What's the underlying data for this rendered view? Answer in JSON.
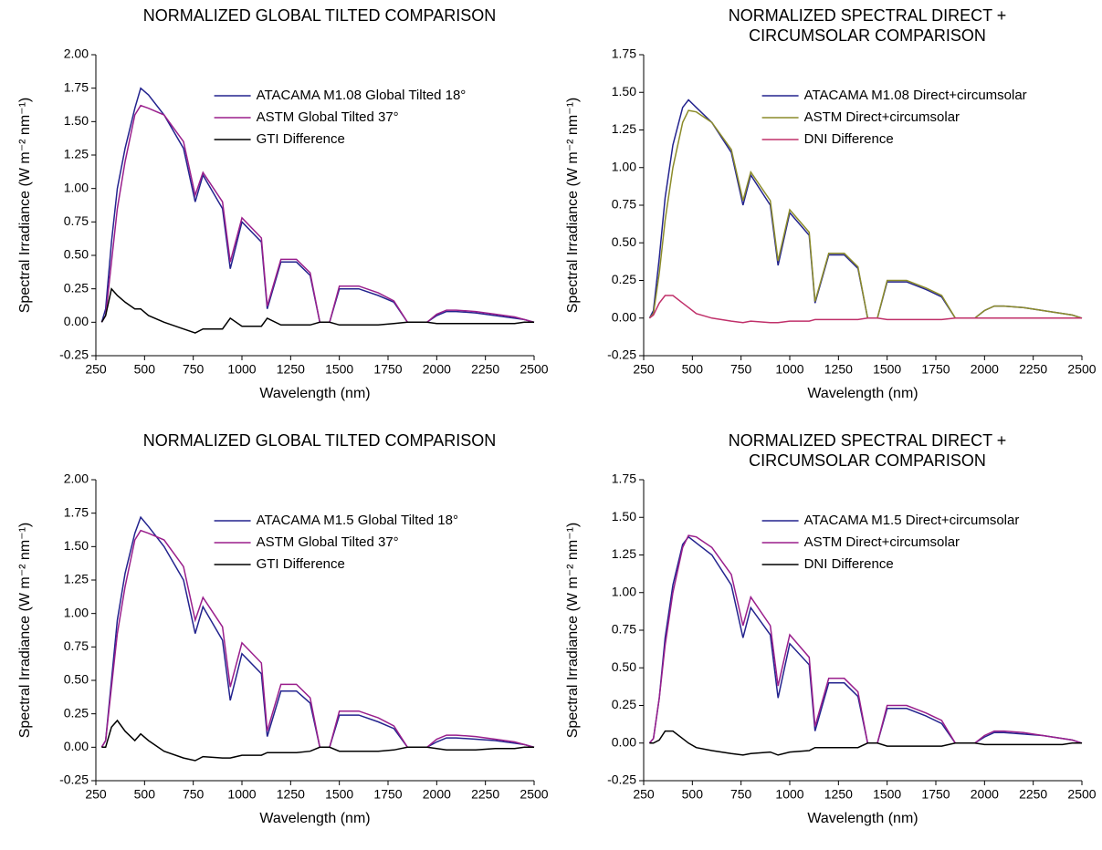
{
  "chart_data": [
    {
      "type": "line",
      "title": "NORMALIZED GLOBAL TILTED COMPARISON",
      "xlabel": "Wavelength (nm)",
      "ylabel": "Spectral Irradiance (W m⁻² nm⁻¹)",
      "x": [
        280,
        300,
        330,
        360,
        400,
        450,
        480,
        520,
        600,
        700,
        760,
        800,
        900,
        940,
        1000,
        1100,
        1130,
        1200,
        1280,
        1350,
        1400,
        1450,
        1500,
        1600,
        1700,
        1780,
        1850,
        1950,
        2000,
        2050,
        2100,
        2200,
        2300,
        2400,
        2450,
        2500
      ],
      "xlim": [
        250,
        2500
      ],
      "xticks": [
        250,
        500,
        750,
        1000,
        1250,
        1500,
        1750,
        2000,
        2250,
        2500
      ],
      "ylim": [
        -0.25,
        2
      ],
      "yticks": [
        -0.25,
        {
          "value": 0,
          "label": "0.00"
        },
        0.25,
        {
          "value": 0.5,
          "label": "0.50"
        },
        0.75,
        {
          "value": 1,
          "label": "1.00"
        },
        1.25,
        {
          "value": 1.5,
          "label": "1.50"
        },
        1.75,
        {
          "value": 2,
          "label": "2.00"
        }
      ],
      "legend": "upper right",
      "series": [
        {
          "name": "ATACAMA M1.08 Global Tilted  18°",
          "color": "#23238e",
          "values": [
            0,
            0.1,
            0.6,
            1.0,
            1.3,
            1.6,
            1.75,
            1.7,
            1.55,
            1.3,
            0.9,
            1.1,
            0.85,
            0.4,
            0.75,
            0.6,
            0.1,
            0.45,
            0.45,
            0.35,
            0,
            0,
            0.25,
            0.25,
            0.2,
            0.15,
            0,
            0,
            0.05,
            0.08,
            0.08,
            0.07,
            0.05,
            0.03,
            0.02,
            0
          ]
        },
        {
          "name": "ASTM Global Tilted  37°",
          "color": "#9a1f8c",
          "values": [
            0,
            0.05,
            0.45,
            0.85,
            1.2,
            1.55,
            1.62,
            1.6,
            1.55,
            1.35,
            0.95,
            1.12,
            0.9,
            0.45,
            0.78,
            0.63,
            0.12,
            0.47,
            0.47,
            0.37,
            0,
            0,
            0.27,
            0.27,
            0.22,
            0.16,
            0,
            0,
            0.06,
            0.09,
            0.09,
            0.08,
            0.06,
            0.04,
            0.02,
            0
          ]
        },
        {
          "name": "GTI Difference",
          "color": "#000000",
          "values": [
            0,
            0.05,
            0.25,
            0.2,
            0.15,
            0.1,
            0.1,
            0.05,
            0,
            -0.05,
            -0.08,
            -0.05,
            -0.05,
            0.03,
            -0.03,
            -0.03,
            0.03,
            -0.02,
            -0.02,
            -0.02,
            0,
            0,
            -0.02,
            -0.02,
            -0.02,
            -0.01,
            0,
            0,
            -0.01,
            -0.01,
            -0.01,
            -0.01,
            -0.01,
            -0.01,
            0,
            0
          ]
        }
      ]
    },
    {
      "type": "line",
      "title": "NORMALIZED SPECTRAL DIRECT + CIRCUMSOLAR COMPARISON",
      "xlabel": "Wavelength (nm)",
      "ylabel": "Spectral Irradiance (W m⁻² nm⁻¹)",
      "x": [
        280,
        300,
        330,
        360,
        400,
        450,
        480,
        520,
        600,
        700,
        760,
        800,
        900,
        940,
        1000,
        1100,
        1130,
        1200,
        1280,
        1350,
        1400,
        1450,
        1500,
        1600,
        1700,
        1780,
        1850,
        1950,
        2000,
        2050,
        2100,
        2200,
        2300,
        2400,
        2450,
        2500
      ],
      "xlim": [
        250,
        2500
      ],
      "xticks": [
        250,
        500,
        750,
        1000,
        1250,
        1500,
        1750,
        2000,
        2250,
        2500
      ],
      "ylim": [
        -0.25,
        1.75
      ],
      "yticks": [
        -0.25,
        {
          "value": 0,
          "label": "0.00"
        },
        0.25,
        {
          "value": 0.5,
          "label": "0.50"
        },
        0.75,
        {
          "value": 1,
          "label": "1.00"
        },
        1.25,
        {
          "value": 1.5,
          "label": "1.50"
        },
        1.75
      ],
      "legend": "upper right",
      "series": [
        {
          "name": "ATACAMA M1.08 Direct+circumsolar",
          "color": "#23238e",
          "values": [
            0,
            0.05,
            0.4,
            0.8,
            1.15,
            1.4,
            1.45,
            1.4,
            1.3,
            1.1,
            0.75,
            0.95,
            0.75,
            0.35,
            0.7,
            0.55,
            0.1,
            0.42,
            0.42,
            0.33,
            0,
            0,
            0.24,
            0.24,
            0.19,
            0.14,
            0,
            0,
            0.05,
            0.08,
            0.08,
            0.07,
            0.05,
            0.03,
            0.02,
            0
          ]
        },
        {
          "name": "ASTM Direct+circumsolar",
          "color": "#8c8c2a",
          "values": [
            0,
            0.03,
            0.3,
            0.65,
            1.0,
            1.3,
            1.38,
            1.37,
            1.3,
            1.12,
            0.78,
            0.97,
            0.78,
            0.38,
            0.72,
            0.57,
            0.11,
            0.43,
            0.43,
            0.34,
            0,
            0,
            0.25,
            0.25,
            0.2,
            0.15,
            0,
            0,
            0.05,
            0.08,
            0.08,
            0.07,
            0.05,
            0.03,
            0.02,
            0
          ]
        },
        {
          "name": "DNI Difference",
          "color": "#c0306a",
          "values": [
            0,
            0.02,
            0.1,
            0.15,
            0.15,
            0.1,
            0.07,
            0.03,
            0,
            -0.02,
            -0.03,
            -0.02,
            -0.03,
            -0.03,
            -0.02,
            -0.02,
            -0.01,
            -0.01,
            -0.01,
            -0.01,
            0,
            0,
            -0.01,
            -0.01,
            -0.01,
            -0.01,
            0,
            0,
            0,
            0,
            0,
            0,
            0,
            0,
            0,
            0
          ]
        }
      ]
    },
    {
      "type": "line",
      "title": "NORMALIZED GLOBAL TILTED COMPARISON",
      "xlabel": "Wavelength (nm)",
      "ylabel": "Spectral Irradiance (W m⁻² nm⁻¹)",
      "x": [
        280,
        300,
        330,
        360,
        400,
        450,
        480,
        520,
        600,
        700,
        760,
        800,
        900,
        940,
        1000,
        1100,
        1130,
        1200,
        1280,
        1350,
        1400,
        1450,
        1500,
        1600,
        1700,
        1780,
        1850,
        1950,
        2000,
        2050,
        2100,
        2200,
        2300,
        2400,
        2450,
        2500
      ],
      "xlim": [
        250,
        2500
      ],
      "xticks": [
        250,
        500,
        750,
        1000,
        1250,
        1500,
        1750,
        2000,
        2250,
        2500
      ],
      "ylim": [
        -0.25,
        2
      ],
      "yticks": [
        -0.25,
        {
          "value": 0,
          "label": "0.00"
        },
        0.25,
        {
          "value": 0.5,
          "label": "0.50"
        },
        0.75,
        {
          "value": 1,
          "label": "1.00"
        },
        1.25,
        {
          "value": 1.5,
          "label": "1.50"
        },
        1.75,
        {
          "value": 2,
          "label": "2.00"
        }
      ],
      "legend": "upper right",
      "series": [
        {
          "name": "ATACAMA M1.5 Global Tilted 18°",
          "color": "#23238e",
          "values": [
            0,
            0.05,
            0.5,
            0.95,
            1.3,
            1.6,
            1.72,
            1.65,
            1.5,
            1.25,
            0.85,
            1.05,
            0.8,
            0.35,
            0.7,
            0.55,
            0.08,
            0.42,
            0.42,
            0.33,
            0,
            0,
            0.24,
            0.24,
            0.19,
            0.14,
            0,
            0,
            0.04,
            0.07,
            0.07,
            0.06,
            0.05,
            0.03,
            0.02,
            0
          ]
        },
        {
          "name": "ASTM Global Tilted  37°",
          "color": "#9a1f8c",
          "values": [
            0,
            0.05,
            0.45,
            0.85,
            1.2,
            1.55,
            1.62,
            1.6,
            1.55,
            1.35,
            0.95,
            1.12,
            0.9,
            0.45,
            0.78,
            0.63,
            0.12,
            0.47,
            0.47,
            0.37,
            0,
            0,
            0.27,
            0.27,
            0.22,
            0.16,
            0,
            0,
            0.06,
            0.09,
            0.09,
            0.08,
            0.06,
            0.04,
            0.02,
            0
          ]
        },
        {
          "name": "GTI Difference",
          "color": "#000000",
          "values": [
            0,
            0,
            0.15,
            0.2,
            0.12,
            0.05,
            0.1,
            0.05,
            -0.03,
            -0.08,
            -0.1,
            -0.07,
            -0.08,
            -0.08,
            -0.06,
            -0.06,
            -0.04,
            -0.04,
            -0.04,
            -0.03,
            0,
            0,
            -0.03,
            -0.03,
            -0.03,
            -0.02,
            0,
            0,
            -0.01,
            -0.02,
            -0.02,
            -0.02,
            -0.01,
            -0.01,
            0,
            0
          ]
        }
      ]
    },
    {
      "type": "line",
      "title": "NORMALIZED SPECTRAL DIRECT + CIRCUMSOLAR COMPARISON",
      "xlabel": "Wavelength (nm)",
      "ylabel": "Spectral Irradiance (W m⁻² nm⁻¹)",
      "x": [
        280,
        300,
        330,
        360,
        400,
        450,
        480,
        520,
        600,
        700,
        760,
        800,
        900,
        940,
        1000,
        1100,
        1130,
        1200,
        1280,
        1350,
        1400,
        1450,
        1500,
        1600,
        1700,
        1780,
        1850,
        1950,
        2000,
        2050,
        2100,
        2200,
        2300,
        2400,
        2450,
        2500
      ],
      "xlim": [
        250,
        2500
      ],
      "xticks": [
        250,
        500,
        750,
        1000,
        1250,
        1500,
        1750,
        2000,
        2250,
        2500
      ],
      "ylim": [
        -0.25,
        1.75
      ],
      "yticks": [
        -0.25,
        {
          "value": 0,
          "label": "0.00"
        },
        0.25,
        {
          "value": 0.5,
          "label": "0.50"
        },
        0.75,
        {
          "value": 1,
          "label": "1.00"
        },
        1.25,
        {
          "value": 1.5,
          "label": "1.50"
        },
        1.75
      ],
      "legend": "upper right",
      "series": [
        {
          "name": "ATACAMA M1.5 Direct+circumsolar",
          "color": "#23238e",
          "values": [
            0,
            0.03,
            0.3,
            0.7,
            1.05,
            1.32,
            1.37,
            1.33,
            1.25,
            1.05,
            0.7,
            0.9,
            0.72,
            0.3,
            0.66,
            0.52,
            0.08,
            0.4,
            0.4,
            0.31,
            0,
            0,
            0.23,
            0.23,
            0.18,
            0.13,
            0,
            0,
            0.04,
            0.07,
            0.07,
            0.06,
            0.05,
            0.03,
            0.02,
            0
          ]
        },
        {
          "name": "ASTM Direct+circumsolar",
          "color": "#9a1f8c",
          "values": [
            0,
            0.03,
            0.3,
            0.65,
            1.0,
            1.3,
            1.38,
            1.37,
            1.3,
            1.12,
            0.78,
            0.97,
            0.78,
            0.38,
            0.72,
            0.57,
            0.11,
            0.43,
            0.43,
            0.34,
            0,
            0,
            0.25,
            0.25,
            0.2,
            0.15,
            0,
            0,
            0.05,
            0.08,
            0.08,
            0.07,
            0.05,
            0.03,
            0.02,
            0
          ]
        },
        {
          "name": "DNI Difference",
          "color": "#000000",
          "values": [
            0,
            0,
            0.02,
            0.08,
            0.08,
            0.03,
            0,
            -0.03,
            -0.05,
            -0.07,
            -0.08,
            -0.07,
            -0.06,
            -0.08,
            -0.06,
            -0.05,
            -0.03,
            -0.03,
            -0.03,
            -0.03,
            0,
            0,
            -0.02,
            -0.02,
            -0.02,
            -0.02,
            0,
            0,
            -0.01,
            -0.01,
            -0.01,
            -0.01,
            -0.01,
            -0.01,
            0,
            0
          ]
        }
      ]
    }
  ]
}
